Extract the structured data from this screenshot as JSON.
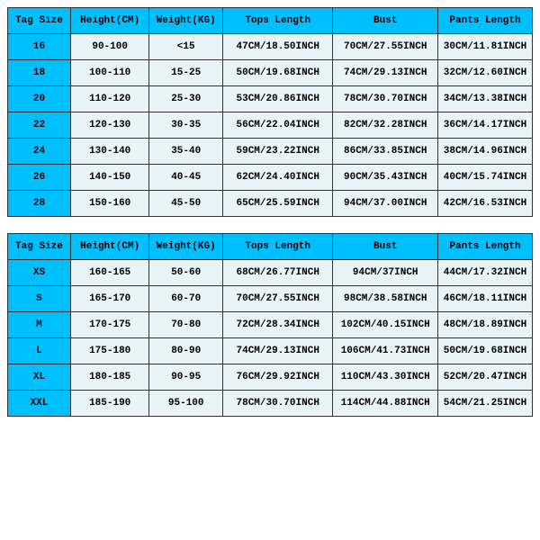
{
  "colors": {
    "header_bg": "#00bfff",
    "data_bg": "#e8f4f8",
    "border": "#333333",
    "text": "#000000"
  },
  "columns": [
    "Tag Size",
    "Height(CM)",
    "Weight(KG)",
    "Tops Length",
    "Bust",
    "Pants Length"
  ],
  "table1": {
    "rows": [
      [
        "16",
        "90-100",
        "<15",
        "47CM/18.50INCH",
        "70CM/27.55INCH",
        "30CM/11.81INCH"
      ],
      [
        "18",
        "100-110",
        "15-25",
        "50CM/19.68INCH",
        "74CM/29.13INCH",
        "32CM/12.60INCH"
      ],
      [
        "20",
        "110-120",
        "25-30",
        "53CM/20.86INCH",
        "78CM/30.70INCH",
        "34CM/13.38INCH"
      ],
      [
        "22",
        "120-130",
        "30-35",
        "56CM/22.04INCH",
        "82CM/32.28INCH",
        "36CM/14.17INCH"
      ],
      [
        "24",
        "130-140",
        "35-40",
        "59CM/23.22INCH",
        "86CM/33.85INCH",
        "38CM/14.96INCH"
      ],
      [
        "26",
        "140-150",
        "40-45",
        "62CM/24.40INCH",
        "90CM/35.43INCH",
        "40CM/15.74INCH"
      ],
      [
        "28",
        "150-160",
        "45-50",
        "65CM/25.59INCH",
        "94CM/37.00INCH",
        "42CM/16.53INCH"
      ]
    ]
  },
  "table2": {
    "rows": [
      [
        "XS",
        "160-165",
        "50-60",
        "68CM/26.77INCH",
        "94CM/37INCH",
        "44CM/17.32INCH"
      ],
      [
        "S",
        "165-170",
        "60-70",
        "70CM/27.55INCH",
        "98CM/38.58INCH",
        "46CM/18.11INCH"
      ],
      [
        "M",
        "170-175",
        "70-80",
        "72CM/28.34INCH",
        "102CM/40.15INCH",
        "48CM/18.89INCH"
      ],
      [
        "L",
        "175-180",
        "80-90",
        "74CM/29.13INCH",
        "106CM/41.73INCH",
        "50CM/19.68INCH"
      ],
      [
        "XL",
        "180-185",
        "90-95",
        "76CM/29.92INCH",
        "110CM/43.30INCH",
        "52CM/20.47INCH"
      ],
      [
        "XXL",
        "185-190",
        "95-100",
        "78CM/30.70INCH",
        "114CM/44.88INCH",
        "54CM/21.25INCH"
      ]
    ]
  }
}
